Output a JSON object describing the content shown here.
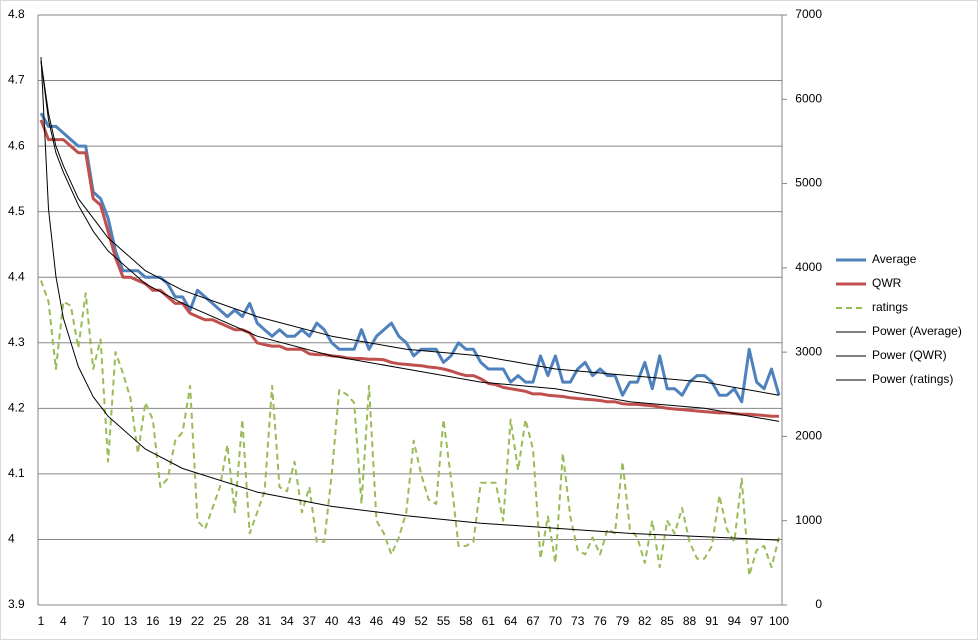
{
  "chart_data": {
    "type": "line",
    "categories": [
      1,
      null,
      null,
      4,
      null,
      null,
      7,
      null,
      null,
      10,
      null,
      null,
      13,
      null,
      null,
      16,
      null,
      null,
      19,
      null,
      null,
      22,
      null,
      null,
      25,
      null,
      null,
      28,
      null,
      null,
      31,
      null,
      null,
      34,
      null,
      null,
      37,
      null,
      null,
      40,
      null,
      null,
      43,
      null,
      null,
      46,
      null,
      null,
      49,
      null,
      null,
      52,
      null,
      null,
      55,
      null,
      null,
      58,
      null,
      null,
      61,
      null,
      null,
      64,
      null,
      null,
      67,
      null,
      null,
      70,
      null,
      null,
      73,
      null,
      null,
      76,
      null,
      null,
      79,
      null,
      null,
      82,
      null,
      null,
      85,
      null,
      null,
      88,
      null,
      null,
      91,
      null,
      null,
      94,
      null,
      null,
      97,
      null,
      null,
      100
    ],
    "ylim": [
      3.9,
      4.8
    ],
    "yticks": [
      3.9,
      4,
      4.1,
      4.2,
      4.3,
      4.4,
      4.5,
      4.6,
      4.7,
      4.8
    ],
    "y2lim": [
      0,
      7000
    ],
    "y2ticks": [
      0,
      1000,
      2000,
      3000,
      4000,
      5000,
      6000,
      7000
    ],
    "grid": true,
    "legend": "right",
    "series": [
      {
        "name": "Average",
        "color": "#4f81bd",
        "values": [
          4.65,
          4.63,
          4.63,
          4.62,
          4.61,
          4.6,
          4.6,
          4.53,
          4.52,
          4.49,
          4.44,
          4.41,
          4.41,
          4.41,
          4.4,
          4.4,
          4.4,
          4.39,
          4.37,
          4.37,
          4.35,
          4.38,
          4.37,
          4.36,
          4.35,
          4.34,
          4.35,
          4.34,
          4.36,
          4.33,
          4.32,
          4.31,
          4.32,
          4.31,
          4.31,
          4.32,
          4.31,
          4.33,
          4.32,
          4.3,
          4.29,
          4.29,
          4.29,
          4.32,
          4.29,
          4.31,
          4.32,
          4.33,
          4.31,
          4.3,
          4.28,
          4.29,
          4.29,
          4.29,
          4.27,
          4.28,
          4.3,
          4.29,
          4.29,
          4.27,
          4.26,
          4.26,
          4.26,
          4.24,
          4.25,
          4.24,
          4.24,
          4.28,
          4.25,
          4.28,
          4.24,
          4.24,
          4.26,
          4.27,
          4.25,
          4.26,
          4.25,
          4.25,
          4.22,
          4.24,
          4.24,
          4.27,
          4.23,
          4.28,
          4.23,
          4.23,
          4.22,
          4.24,
          4.25,
          4.25,
          4.24,
          4.22,
          4.22,
          4.23,
          4.21,
          4.29,
          4.24,
          4.23,
          4.26,
          4.22
        ]
      },
      {
        "name": "QWR",
        "color": "#c0504d",
        "values": [
          4.64,
          4.61,
          4.61,
          4.61,
          4.6,
          4.59,
          4.59,
          4.52,
          4.51,
          4.47,
          4.43,
          4.4,
          4.4,
          4.395,
          4.39,
          4.38,
          4.38,
          4.37,
          4.36,
          4.36,
          4.345,
          4.34,
          4.335,
          4.335,
          4.33,
          4.325,
          4.32,
          4.32,
          4.315,
          4.3,
          4.297,
          4.295,
          4.295,
          4.29,
          4.29,
          4.29,
          4.283,
          4.282,
          4.282,
          4.28,
          4.279,
          4.277,
          4.276,
          4.276,
          4.275,
          4.275,
          4.274,
          4.27,
          4.268,
          4.267,
          4.266,
          4.265,
          4.263,
          4.262,
          4.26,
          4.257,
          4.253,
          4.25,
          4.25,
          4.245,
          4.238,
          4.236,
          4.232,
          4.23,
          4.228,
          4.226,
          4.222,
          4.222,
          4.22,
          4.219,
          4.218,
          4.216,
          4.215,
          4.214,
          4.213,
          4.212,
          4.21,
          4.21,
          4.207,
          4.206,
          4.206,
          4.205,
          4.204,
          4.202,
          4.2,
          4.199,
          4.198,
          4.197,
          4.196,
          4.195,
          4.194,
          4.193,
          4.193,
          4.192,
          4.191,
          4.191,
          4.19,
          4.189,
          4.188,
          4.188
        ]
      },
      {
        "name": "ratings",
        "color": "#9bbb59",
        "axis": "y2",
        "dashed": true,
        "values": [
          3850,
          3600,
          2800,
          3600,
          3550,
          3050,
          3700,
          2800,
          3150,
          1700,
          3000,
          2750,
          2450,
          1800,
          2400,
          2200,
          1400,
          1500,
          1950,
          2050,
          2600,
          1000,
          900,
          1150,
          1400,
          1900,
          1100,
          2200,
          850,
          1100,
          1350,
          2600,
          1400,
          1350,
          1700,
          1100,
          1400,
          750,
          750,
          1550,
          2550,
          2500,
          2400,
          1200,
          2600,
          1000,
          850,
          600,
          800,
          1100,
          1950,
          1550,
          1250,
          1200,
          2200,
          1500,
          700,
          700,
          750,
          1450,
          1450,
          1450,
          1000,
          2200,
          1600,
          2200,
          1850,
          550,
          1050,
          500,
          1800,
          1050,
          650,
          600,
          800,
          600,
          900,
          850,
          1700,
          900,
          800,
          500,
          1000,
          450,
          1000,
          850,
          1150,
          750,
          550,
          550,
          700,
          1300,
          900,
          750,
          1500,
          350,
          650,
          700,
          450,
          800
        ]
      },
      {
        "name": "Power (Average)",
        "color": "#000000",
        "trend": true,
        "x": [
          1,
          2,
          3,
          4,
          6,
          8,
          10,
          15,
          20,
          30,
          40,
          50,
          60,
          70,
          80,
          90,
          100
        ],
        "values": [
          4.73,
          4.65,
          4.6,
          4.57,
          4.52,
          4.49,
          4.46,
          4.41,
          4.38,
          4.34,
          4.31,
          4.29,
          4.28,
          4.26,
          4.25,
          4.24,
          4.22
        ]
      },
      {
        "name": "Power (QWR)",
        "color": "#000000",
        "trend": true,
        "x": [
          1,
          2,
          3,
          4,
          6,
          8,
          10,
          15,
          20,
          30,
          40,
          50,
          60,
          70,
          80,
          90,
          100
        ],
        "values": [
          4.73,
          4.64,
          4.59,
          4.56,
          4.51,
          4.47,
          4.44,
          4.39,
          4.36,
          4.31,
          4.28,
          4.26,
          4.24,
          4.23,
          4.21,
          4.2,
          4.18
        ]
      },
      {
        "name": "Power (ratings)",
        "color": "#000000",
        "trend": true,
        "axis": "y2",
        "x": [
          1,
          2,
          3,
          4,
          6,
          8,
          10,
          15,
          20,
          30,
          40,
          50,
          60,
          70,
          80,
          90,
          100
        ],
        "values": [
          6500,
          4700,
          3900,
          3400,
          2830,
          2470,
          2240,
          1850,
          1620,
          1340,
          1170,
          1060,
          970,
          910,
          850,
          810,
          770
        ]
      }
    ]
  }
}
